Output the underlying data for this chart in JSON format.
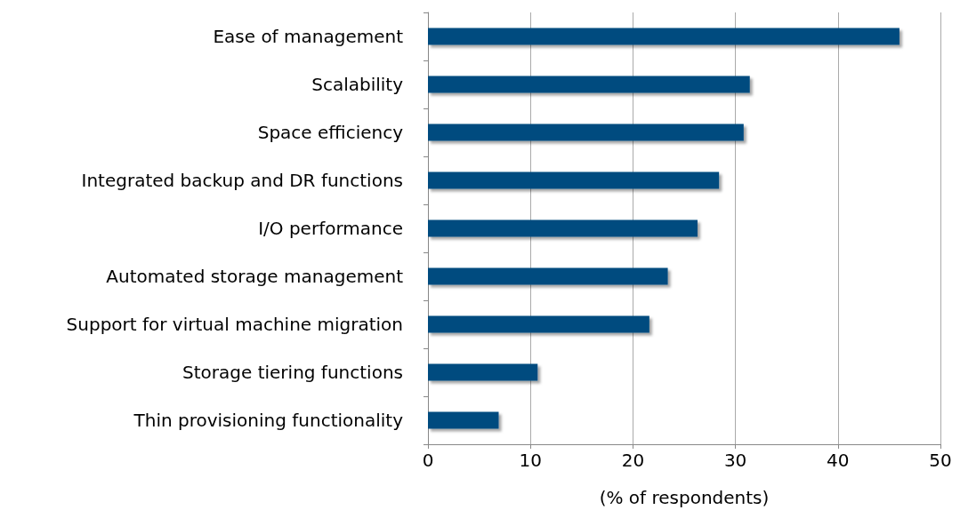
{
  "chart_data": {
    "type": "bar",
    "orientation": "horizontal",
    "xlabel": "(% of respondents)",
    "categories": [
      "Ease of management",
      "Scalability",
      "Space efficiency",
      "Integrated backup and DR functions",
      "I/O performance",
      "Automated storage management",
      "Support for virtual machine migration",
      "Storage tiering functions",
      "Thin provisioning functionality"
    ],
    "values": [
      46,
      31.4,
      30.8,
      28.4,
      26.3,
      23.4,
      21.6,
      10.7,
      6.9
    ],
    "color": "#004b7f",
    "xlim": [
      0,
      50
    ],
    "xticks": [
      0,
      10,
      20,
      30,
      40,
      50
    ],
    "grid": "x"
  }
}
